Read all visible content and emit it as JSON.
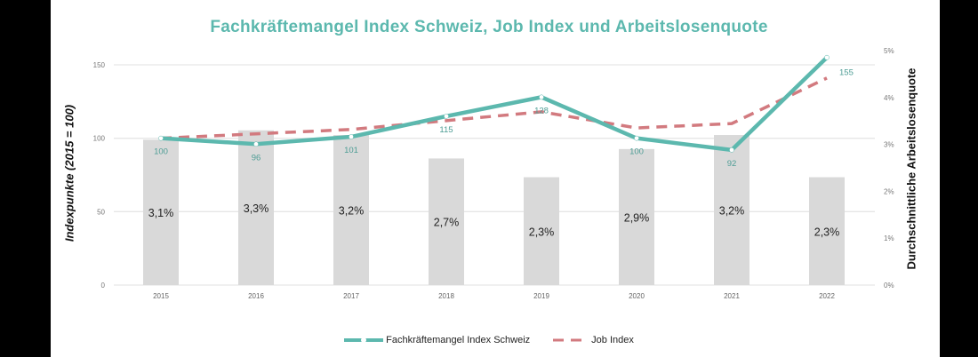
{
  "chart_data": {
    "type": "bar+line",
    "title": "Fachkräftemangel Index Schweiz, Job Index und Arbeitslosenquote",
    "categories": [
      "2015",
      "2016",
      "2017",
      "2018",
      "2019",
      "2020",
      "2021",
      "2022"
    ],
    "ylabel": "Indexpunkte (2015 = 100)",
    "y2label": "Durchschnittliche Arbeitslosenquote",
    "ylim": [
      0,
      150
    ],
    "yticks": [
      "0",
      "50",
      "100",
      "150"
    ],
    "y2lim": [
      0,
      5
    ],
    "y2ticks": [
      "0%",
      "1%",
      "2%",
      "3%",
      "4%",
      "5%"
    ],
    "grid": true,
    "legend_position": "bottom",
    "bars": {
      "name": "Arbeitslosenquote",
      "values": [
        3.1,
        3.3,
        3.2,
        2.7,
        2.3,
        2.9,
        3.2,
        2.3
      ],
      "labels": [
        "3,1%",
        "3,3%",
        "3,2%",
        "2,7%",
        "2,3%",
        "2,9%",
        "3,2%",
        "2,3%"
      ],
      "color": "#d9d9d9"
    },
    "series": [
      {
        "name": "Fachkräftemangel Index Schweiz",
        "values": [
          100,
          96,
          101,
          115,
          128,
          100,
          92,
          155
        ],
        "labels": [
          "100",
          "96",
          "101",
          "115",
          "128",
          "100",
          "92",
          "155"
        ],
        "color": "#5cb8ae",
        "style": "solid"
      },
      {
        "name": "Job Index",
        "values": [
          100,
          103,
          106,
          112,
          118,
          107,
          110,
          141
        ],
        "color": "#d27a7f",
        "style": "dashed"
      }
    ]
  }
}
